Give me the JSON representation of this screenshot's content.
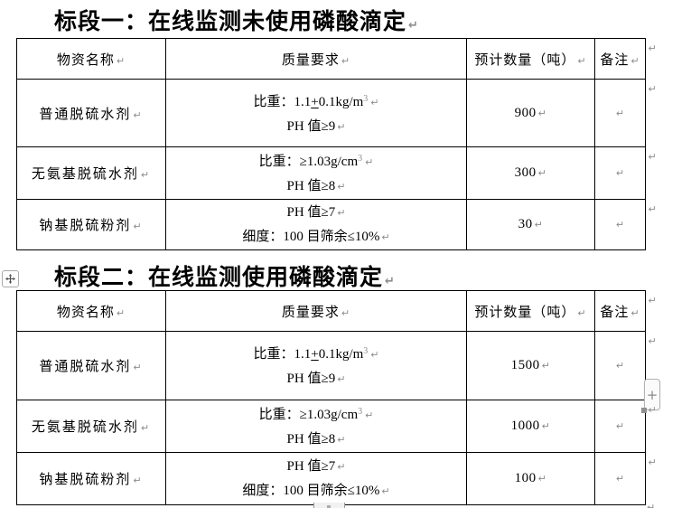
{
  "document": {
    "marks": {
      "pilcrow": "↵"
    },
    "controls": {
      "plus_label": "+"
    },
    "colors": {
      "text": "#000000",
      "border": "#000000",
      "mark": "#8c8c8c",
      "page_bg": "#ffffff"
    },
    "sections": [
      {
        "title": "标段一：在线监测未使用磷酸滴定",
        "table": {
          "headers": [
            "物资名称",
            "质量要求",
            "预计数量（吨）",
            "备注"
          ],
          "rows": [
            {
              "name": "普通脱硫水剂",
              "requirements": [
                [
                  {
                    "t": "比重：1.1",
                    "style": "n"
                  },
                  {
                    "t": "+",
                    "style": "u"
                  },
                  {
                    "t": "0.1kg/m",
                    "style": "n"
                  },
                  {
                    "t": "3",
                    "style": "sup"
                  }
                ],
                [
                  {
                    "t": "PH 值≥9",
                    "style": "n"
                  }
                ]
              ],
              "quantity": "900",
              "note": ""
            },
            {
              "name": "无氨基脱硫水剂",
              "requirements": [
                [
                  {
                    "t": "比重：≥1.03g/cm",
                    "style": "n"
                  },
                  {
                    "t": "3",
                    "style": "sup"
                  }
                ],
                [
                  {
                    "t": "PH 值≥8",
                    "style": "n"
                  }
                ]
              ],
              "quantity": "300",
              "note": ""
            },
            {
              "name": "钠基脱硫粉剂",
              "requirements": [
                [
                  {
                    "t": "PH 值≥7",
                    "style": "n"
                  }
                ],
                [
                  {
                    "t": "细度：100 目筛余≤10%",
                    "style": "n"
                  }
                ]
              ],
              "quantity": "30",
              "note": ""
            }
          ]
        }
      },
      {
        "title": "标段二：在线监测使用磷酸滴定",
        "table": {
          "headers": [
            "物资名称",
            "质量要求",
            "预计数量（吨）",
            "备注"
          ],
          "rows": [
            {
              "name": "普通脱硫水剂",
              "requirements": [
                [
                  {
                    "t": "比重：1.1",
                    "style": "n"
                  },
                  {
                    "t": "+",
                    "style": "u"
                  },
                  {
                    "t": "0.1kg/m",
                    "style": "n"
                  },
                  {
                    "t": "3",
                    "style": "sup"
                  }
                ],
                [
                  {
                    "t": "PH 值≥9",
                    "style": "n"
                  }
                ]
              ],
              "quantity": "1500",
              "note": ""
            },
            {
              "name": "无氨基脱硫水剂",
              "requirements": [
                [
                  {
                    "t": "比重：≥1.03g/cm",
                    "style": "n"
                  },
                  {
                    "t": "3",
                    "style": "sup"
                  }
                ],
                [
                  {
                    "t": "PH 值≥8",
                    "style": "n"
                  }
                ]
              ],
              "quantity": "1000",
              "note": ""
            },
            {
              "name": "钠基脱硫粉剂",
              "requirements": [
                [
                  {
                    "t": "PH 值≥7",
                    "style": "n"
                  }
                ],
                [
                  {
                    "t": "细度：100 目筛余≤10%",
                    "style": "n"
                  }
                ]
              ],
              "quantity": "100",
              "note": ""
            }
          ]
        }
      }
    ]
  }
}
